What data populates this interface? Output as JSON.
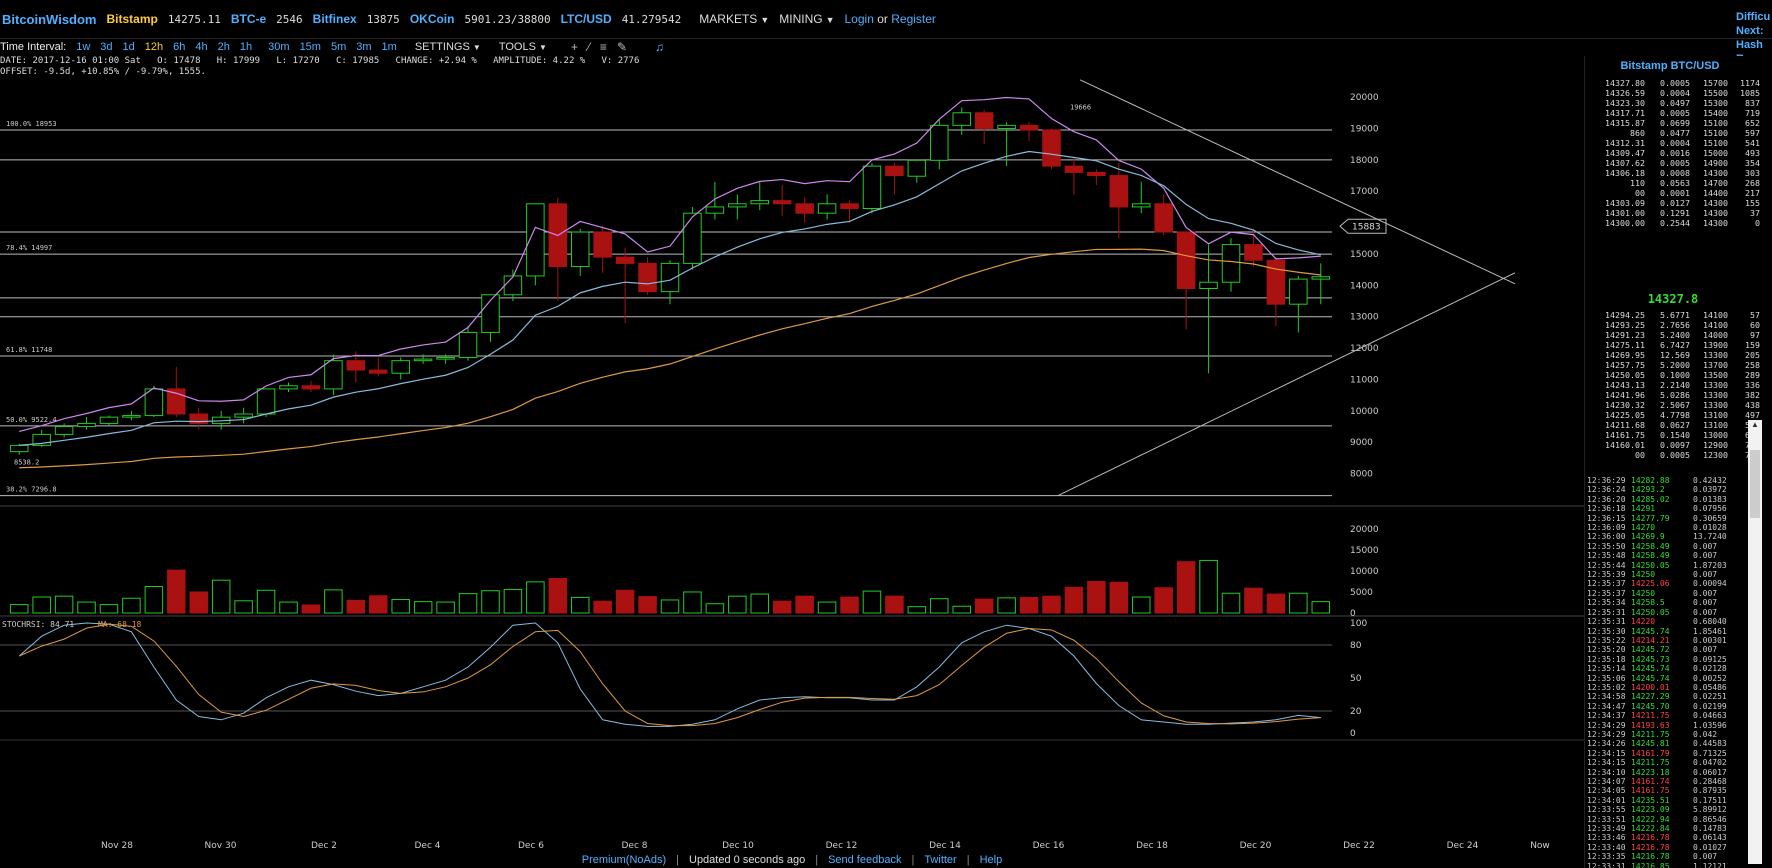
{
  "header": {
    "brand": "BitcoinWisdom",
    "markets": [
      {
        "name": "Bitstamp",
        "value": "14275.11",
        "active": true
      },
      {
        "name": "BTC-e",
        "value": "2546",
        "active": false
      },
      {
        "name": "Bitfinex",
        "value": "13875",
        "active": false
      },
      {
        "name": "OKCoin",
        "value": "5901.23/38800",
        "active": false
      },
      {
        "name": "LTC/USD",
        "value": "41.279542",
        "active": false
      }
    ],
    "menu_markets": "MARKETS",
    "menu_mining": "MINING",
    "login": "Login",
    "or": "or",
    "register": "Register",
    "right_cut": [
      "Difficu",
      "Next:",
      "Hash R"
    ]
  },
  "toolbar": {
    "label": "Time Interval:",
    "intervals": [
      "1w",
      "3d",
      "1d",
      "12h",
      "6h",
      "4h",
      "2h",
      "1h",
      "30m",
      "15m",
      "5m",
      "3m",
      "1m"
    ],
    "active_interval": "12h",
    "settings": "SETTINGS",
    "tools": "TOOLS"
  },
  "info": {
    "line1": "DATE: 2017-12-16 01:00 Sat   O: 17478   H: 17999   L: 17270   C: 17985   CHANGE: +2.94 %   AMPLITUDE: 4.22 %   V: 2776",
    "line2": "OFFSET: -9.5d, +10.85% / -9.79%, 1555."
  },
  "chart_data": {
    "type": "candlestick",
    "x_ticks": [
      "Nov 28",
      "Nov 30",
      "Dec 2",
      "Dec 4",
      "Dec 6",
      "Dec 8",
      "Dec 10",
      "Dec 12",
      "Dec 14",
      "Dec 16",
      "Dec 18",
      "Dec 20",
      "Dec 22",
      "Dec 24",
      "Now"
    ],
    "price_ticks": [
      20000,
      19000,
      18000,
      17000,
      16000,
      15000,
      14000,
      13000,
      12000,
      11000,
      10000,
      9000,
      8000
    ],
    "price_ylim": [
      7000,
      20800
    ],
    "price_tag": "15883",
    "annotations": [
      {
        "text": "100.0% 18953",
        "price": 18953
      },
      {
        "text": "78.4% 14997",
        "price": 14997
      },
      {
        "text": "61.8% 11748",
        "price": 11748
      },
      {
        "text": "50.0% 9522.4",
        "price": 9522.4
      },
      {
        "text": "38.2% 7296.8",
        "price": 7296.8
      },
      {
        "text": "19666",
        "price": 19666
      },
      {
        "text": "8538.2",
        "price": 8538.2
      }
    ],
    "candles": [
      [
        8700,
        8950,
        8600,
        8900
      ],
      [
        8900,
        9400,
        8850,
        9250
      ],
      [
        9250,
        9600,
        9150,
        9500
      ],
      [
        9500,
        9800,
        9400,
        9600
      ],
      [
        9600,
        9850,
        9500,
        9800
      ],
      [
        9800,
        10000,
        9700,
        9850
      ],
      [
        9850,
        10800,
        9800,
        10700
      ],
      [
        10700,
        11400,
        9800,
        9900
      ],
      [
        9900,
        10100,
        9400,
        9600
      ],
      [
        9600,
        10000,
        9400,
        9800
      ],
      [
        9800,
        10100,
        9600,
        9900
      ],
      [
        9900,
        10600,
        9800,
        10700
      ],
      [
        10700,
        10900,
        10600,
        10800
      ],
      [
        10800,
        10950,
        10600,
        10700
      ],
      [
        10700,
        11800,
        10500,
        11600
      ],
      [
        11600,
        11900,
        10900,
        11300
      ],
      [
        11300,
        11700,
        11100,
        11200
      ],
      [
        11200,
        11700,
        11000,
        11600
      ],
      [
        11600,
        11800,
        11500,
        11650
      ],
      [
        11650,
        11800,
        11500,
        11700
      ],
      [
        11700,
        12700,
        11600,
        12500
      ],
      [
        12500,
        13700,
        12200,
        13700
      ],
      [
        13700,
        14500,
        13500,
        14300
      ],
      [
        14300,
        16600,
        14000,
        16600
      ],
      [
        16600,
        16800,
        13500,
        14600
      ],
      [
        14600,
        15800,
        14300,
        15700
      ],
      [
        15700,
        15900,
        14400,
        14900
      ],
      [
        14900,
        15200,
        12800,
        14700
      ],
      [
        14700,
        14900,
        13700,
        13800
      ],
      [
        13800,
        14800,
        13400,
        14700
      ],
      [
        14700,
        16500,
        14500,
        16300
      ],
      [
        16300,
        17300,
        16100,
        16500
      ],
      [
        16500,
        16900,
        16100,
        16600
      ],
      [
        16600,
        17300,
        16400,
        16700
      ],
      [
        16700,
        17200,
        16200,
        16600
      ],
      [
        16600,
        16800,
        16000,
        16300
      ],
      [
        16300,
        16900,
        16100,
        16600
      ],
      [
        16600,
        16700,
        16000,
        16450
      ],
      [
        16450,
        17900,
        16300,
        17800
      ],
      [
        17800,
        17900,
        16900,
        17500
      ],
      [
        17478,
        17999,
        17270,
        17985
      ],
      [
        17985,
        19300,
        17700,
        19100
      ],
      [
        19100,
        19666,
        18800,
        19500
      ],
      [
        19500,
        19600,
        18500,
        19000
      ],
      [
        19000,
        19200,
        17800,
        19100
      ],
      [
        19100,
        19200,
        18600,
        18950
      ],
      [
        18950,
        19000,
        17700,
        17800
      ],
      [
        17800,
        18100,
        16900,
        17600
      ],
      [
        17600,
        17700,
        17200,
        17500
      ],
      [
        17500,
        17900,
        15500,
        16500
      ],
      [
        16500,
        17300,
        16300,
        16600
      ],
      [
        16600,
        16900,
        15600,
        15700
      ],
      [
        15700,
        15700,
        12600,
        13900
      ],
      [
        13900,
        15300,
        11200,
        14100
      ],
      [
        14100,
        15500,
        13800,
        15300
      ],
      [
        15300,
        15800,
        14600,
        14800
      ],
      [
        14800,
        14900,
        12700,
        13400
      ],
      [
        13400,
        14300,
        12500,
        14200
      ],
      [
        14200,
        14700,
        13400,
        14275
      ]
    ],
    "volumes": [
      2000,
      3800,
      4000,
      2600,
      2000,
      3500,
      6300,
      10200,
      5000,
      7800,
      2900,
      5400,
      2600,
      1900,
      5500,
      3000,
      4100,
      3200,
      2700,
      2600,
      4600,
      5300,
      5600,
      7400,
      8200,
      3700,
      2800,
      5400,
      3900,
      3100,
      5000,
      2200,
      4000,
      4500,
      2800,
      4000,
      2600,
      3800,
      5200,
      4000,
      1500,
      3400,
      1600,
      3300,
      3600,
      3700,
      4000,
      6100,
      7500,
      7300,
      3800,
      6000,
      12200,
      12500,
      4700,
      5900,
      4500,
      4700,
      2700
    ],
    "volume_ticks": [
      20000,
      15000,
      10000,
      5000,
      0
    ],
    "volume_ylim": [
      0,
      25200
    ],
    "rsi_label": "STOCHRSI: 84.71",
    "ma_label": "MA: 68.18",
    "rsi_ticks": [
      100,
      80,
      50,
      20,
      0
    ],
    "colors": {
      "up": "#22cc22",
      "down": "#aa1111",
      "ema_fast": "#cc88ee",
      "ema_mid": "#88bbdd",
      "ema_slow": "#dd9944",
      "grid": "#cccccc"
    }
  },
  "side": {
    "title": "Bitstamp BTC/USD",
    "asks": [
      [
        "14327.80",
        "0.0005",
        "15700",
        "1174"
      ],
      [
        "14326.59",
        "0.0004",
        "15500",
        "1085"
      ],
      [
        "14323.30",
        "0.0497",
        "15300",
        "837"
      ],
      [
        "14317.71",
        "0.0005",
        "15400",
        "719"
      ],
      [
        "14315.87",
        "0.0699",
        "15100",
        "652"
      ],
      [
        "860",
        "0.0477",
        "15100",
        "597"
      ],
      [
        "14312.31",
        "0.0004",
        "15100",
        "541"
      ],
      [
        "14309.47",
        "0.0016",
        "15000",
        "493"
      ],
      [
        "14307.62",
        "0.0005",
        "14900",
        "354"
      ],
      [
        "14306.18",
        "0.0008",
        "14300",
        "303"
      ],
      [
        "110",
        "0.0563",
        "14700",
        "268"
      ],
      [
        "00",
        "0.0001",
        "14400",
        "217"
      ],
      [
        "14303.09",
        "0.0127",
        "14300",
        "155"
      ],
      [
        "14301.00",
        "0.1291",
        "14300",
        "37"
      ],
      [
        "14300.00",
        "0.2544",
        "14300",
        "0"
      ]
    ],
    "mid_price": "14327.8",
    "bids": [
      [
        "14294.25",
        "5.6771",
        "14100",
        "57"
      ],
      [
        "14293.25",
        "2.7656",
        "14100",
        "60"
      ],
      [
        "14291.23",
        "5.2400",
        "14000",
        "97"
      ],
      [
        "14275.11",
        "6.7427",
        "13900",
        "159"
      ],
      [
        "14269.95",
        "12.569",
        "13300",
        "205"
      ],
      [
        "14257.75",
        "5.2000",
        "13700",
        "258"
      ],
      [
        "14250.05",
        "0.1000",
        "13500",
        "289"
      ],
      [
        "14243.13",
        "2.2140",
        "13300",
        "336"
      ],
      [
        "14241.96",
        "5.0286",
        "13300",
        "382"
      ],
      [
        "14230.32",
        "2.5067",
        "13300",
        "438"
      ],
      [
        "14225.05",
        "4.7798",
        "13100",
        "497"
      ],
      [
        "14211.68",
        "0.0627",
        "13100",
        "547"
      ],
      [
        "14161.75",
        "0.1540",
        "13000",
        "669"
      ],
      [
        "14160.01",
        "0.0097",
        "12900",
        "723"
      ],
      [
        "00",
        "0.0005",
        "12300",
        "774"
      ]
    ],
    "trades": [
      [
        "12:36:29",
        "14282.88",
        "0.42432",
        "up"
      ],
      [
        "12:36:24",
        "14293.2",
        "0.03972",
        "up"
      ],
      [
        "12:36:20",
        "14285.02",
        "0.01383",
        "up"
      ],
      [
        "12:36:18",
        "14291",
        "0.07956",
        "up"
      ],
      [
        "12:36:15",
        "14277.79",
        "0.30659",
        "up"
      ],
      [
        "12:36:09",
        "14270",
        "0.01028",
        "up"
      ],
      [
        "12:36:00",
        "14269.9",
        "13.7240",
        "up"
      ],
      [
        "12:35:50",
        "14258.49",
        "0.007",
        "up"
      ],
      [
        "12:35:48",
        "14258.49",
        "0.007",
        "up"
      ],
      [
        "12:35:44",
        "14250.05",
        "1.87203",
        "up"
      ],
      [
        "12:35:39",
        "14250",
        "0.007",
        "up"
      ],
      [
        "12:35:37",
        "14225.06",
        "0.00094",
        "dn"
      ],
      [
        "12:35:37",
        "14250",
        "0.007",
        "up"
      ],
      [
        "12:35:34",
        "14258.5",
        "0.007",
        "up"
      ],
      [
        "12:35:31",
        "14250.05",
        "0.007",
        "up"
      ],
      [
        "12:35:31",
        "14220",
        "0.68040",
        "dn"
      ],
      [
        "12:35:30",
        "14245.74",
        "1.85461",
        "up"
      ],
      [
        "12:35:22",
        "14214.21",
        "0.00301",
        "dn"
      ],
      [
        "12:35:20",
        "14245.72",
        "0.007",
        "up"
      ],
      [
        "12:35:18",
        "14245.73",
        "0.09125",
        "up"
      ],
      [
        "12:35:14",
        "14245.74",
        "0.02128",
        "up"
      ],
      [
        "12:35:06",
        "14245.74",
        "0.00252",
        "up"
      ],
      [
        "12:35:02",
        "14200.01",
        "0.05486",
        "dn"
      ],
      [
        "12:34:58",
        "14227.29",
        "0.02251",
        "up"
      ],
      [
        "12:34:47",
        "14245.70",
        "0.02199",
        "up"
      ],
      [
        "12:34:37",
        "14211.75",
        "0.04663",
        "dn"
      ],
      [
        "12:34:29",
        "14193.63",
        "1.03596",
        "dn"
      ],
      [
        "12:34:29",
        "14211.75",
        "0.042",
        "up"
      ],
      [
        "12:34:26",
        "14245.81",
        "0.44583",
        "up"
      ],
      [
        "12:34:15",
        "14161.79",
        "0.71325",
        "dn"
      ],
      [
        "12:34:15",
        "14211.75",
        "0.04702",
        "up"
      ],
      [
        "12:34:10",
        "14223.18",
        "0.06017",
        "up"
      ],
      [
        "12:34:07",
        "14161.74",
        "0.28468",
        "dn"
      ],
      [
        "12:34:05",
        "14161.75",
        "0.87935",
        "dn"
      ],
      [
        "12:34:01",
        "14235.51",
        "0.17511",
        "up"
      ],
      [
        "12:33:55",
        "14223.09",
        "5.89912",
        "up"
      ],
      [
        "12:33:51",
        "14222.94",
        "0.86546",
        "up"
      ],
      [
        "12:33:49",
        "14222.84",
        "0.14783",
        "up"
      ],
      [
        "12:33:46",
        "14216.78",
        "0.06143",
        "dn"
      ],
      [
        "12:33:40",
        "14216.78",
        "0.01027",
        "dn"
      ],
      [
        "12:33:35",
        "14216.78",
        "0.007",
        "up"
      ],
      [
        "12:33:31",
        "14216.85",
        "1.12121",
        "up"
      ]
    ]
  },
  "footer": {
    "premium": "Premium(NoAds)",
    "updated": "Updated 0 seconds ago",
    "feedback": "Send feedback",
    "twitter": "Twitter",
    "help": "Help"
  }
}
